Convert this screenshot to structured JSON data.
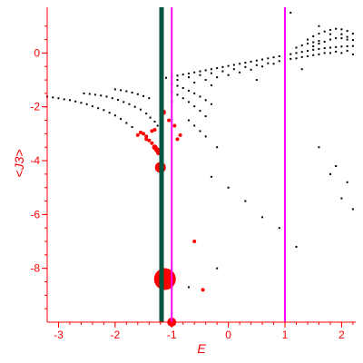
{
  "chart_data": {
    "type": "scatter",
    "title": "",
    "xlabel": "E",
    "ylabel": "<J3>",
    "xlim": [
      -3.2,
      2.25
    ],
    "ylim": [
      -10.0,
      1.7
    ],
    "grid": false,
    "legend": "none",
    "x_ticks": [
      {
        "value": -3,
        "label": "-3"
      },
      {
        "value": -2,
        "label": "-2"
      },
      {
        "value": -1,
        "label": "-1"
      },
      {
        "value": 0,
        "label": "0"
      },
      {
        "value": 1,
        "label": "1"
      },
      {
        "value": 2,
        "label": "2"
      }
    ],
    "y_ticks": [
      {
        "value": 0,
        "label": "0"
      },
      {
        "value": -2,
        "label": "-2"
      },
      {
        "value": -4,
        "label": "-4"
      },
      {
        "value": -6,
        "label": "-6"
      },
      {
        "value": -8,
        "label": "-8"
      }
    ],
    "colors": {
      "axis": "#ff0000",
      "tick_label": "#ff0000",
      "black_points": "#000000",
      "red_points": "#ff0000",
      "green_line": "#00553f",
      "magenta_line": "#ff00ff"
    },
    "vertical_lines": [
      {
        "x": -1.18,
        "color": "#00553f",
        "width": "thick"
      },
      {
        "x": -1.0,
        "color": "#ff00ff",
        "width": "thin"
      },
      {
        "x": 1.0,
        "color": "#ff00ff",
        "width": "thin"
      }
    ],
    "series": [
      {
        "color": "#000000",
        "marker": "small-square",
        "points": [
          [
            -3.2,
            -1.62
          ],
          [
            -3.1,
            -1.65
          ],
          [
            -3.0,
            -1.68
          ],
          [
            -2.9,
            -1.72
          ],
          [
            -2.8,
            -1.75
          ],
          [
            -2.7,
            -1.8
          ],
          [
            -2.6,
            -1.85
          ],
          [
            -2.5,
            -1.9
          ],
          [
            -2.4,
            -1.98
          ],
          [
            -2.3,
            -2.05
          ],
          [
            -2.2,
            -2.12
          ],
          [
            -2.1,
            -2.22
          ],
          [
            -2.0,
            -2.32
          ],
          [
            -1.9,
            -2.45
          ],
          [
            -1.8,
            -2.6
          ],
          [
            -1.7,
            -2.75
          ],
          [
            -2.55,
            -1.5
          ],
          [
            -2.45,
            -1.52
          ],
          [
            -2.35,
            -1.55
          ],
          [
            -2.25,
            -1.58
          ],
          [
            -2.15,
            -1.62
          ],
          [
            -2.05,
            -1.68
          ],
          [
            -1.95,
            -1.74
          ],
          [
            -1.85,
            -1.82
          ],
          [
            -1.75,
            -1.9
          ],
          [
            -1.65,
            -2.0
          ],
          [
            -1.55,
            -2.1
          ],
          [
            -1.45,
            -2.25
          ],
          [
            -1.38,
            -2.4
          ],
          [
            -1.3,
            -2.55
          ],
          [
            -1.25,
            -2.7
          ],
          [
            -2.0,
            -1.35
          ],
          [
            -1.9,
            -1.38
          ],
          [
            -1.8,
            -1.42
          ],
          [
            -1.7,
            -1.47
          ],
          [
            -1.6,
            -1.53
          ],
          [
            -1.5,
            -1.6
          ],
          [
            -1.4,
            -1.68
          ],
          [
            -1.0,
            -1.15
          ],
          [
            -0.9,
            -1.22
          ],
          [
            -0.8,
            -1.3
          ],
          [
            -0.7,
            -1.4
          ],
          [
            -0.6,
            -1.5
          ],
          [
            -0.5,
            -1.62
          ],
          [
            -0.4,
            -1.75
          ],
          [
            -0.3,
            -1.9
          ],
          [
            -1.0,
            -1.45
          ],
          [
            -0.9,
            -1.55
          ],
          [
            -0.8,
            -1.68
          ],
          [
            -0.7,
            -1.82
          ],
          [
            -0.6,
            -1.98
          ],
          [
            -0.5,
            -2.15
          ],
          [
            -0.4,
            -2.35
          ],
          [
            -1.1,
            -0.92
          ],
          [
            -1.0,
            -0.88
          ],
          [
            -0.9,
            -0.84
          ],
          [
            -0.8,
            -0.8
          ],
          [
            -0.7,
            -0.76
          ],
          [
            -0.6,
            -0.72
          ],
          [
            -0.5,
            -0.68
          ],
          [
            -0.4,
            -0.64
          ],
          [
            -0.3,
            -0.6
          ],
          [
            -0.2,
            -0.56
          ],
          [
            -0.1,
            -0.52
          ],
          [
            0.0,
            -0.48
          ],
          [
            0.1,
            -0.44
          ],
          [
            0.2,
            -0.4
          ],
          [
            0.3,
            -0.36
          ],
          [
            0.4,
            -0.32
          ],
          [
            0.5,
            -0.28
          ],
          [
            0.6,
            -0.24
          ],
          [
            0.7,
            -0.2
          ],
          [
            0.8,
            -0.16
          ],
          [
            0.9,
            -0.12
          ],
          [
            1.0,
            -0.08
          ],
          [
            1.1,
            -0.04
          ],
          [
            1.2,
            0.0
          ],
          [
            1.3,
            0.04
          ],
          [
            1.4,
            0.08
          ],
          [
            1.5,
            0.12
          ],
          [
            1.6,
            0.15
          ],
          [
            1.7,
            0.18
          ],
          [
            1.8,
            0.2
          ],
          [
            1.9,
            0.22
          ],
          [
            2.0,
            0.24
          ],
          [
            2.1,
            0.25
          ],
          [
            2.2,
            0.26
          ],
          [
            -0.9,
            -1.0
          ],
          [
            -0.7,
            -0.9
          ],
          [
            -0.5,
            -0.82
          ],
          [
            -0.3,
            -0.75
          ],
          [
            -0.1,
            -0.68
          ],
          [
            0.1,
            -0.6
          ],
          [
            0.3,
            -0.52
          ],
          [
            0.5,
            -0.45
          ],
          [
            0.7,
            -0.38
          ],
          [
            0.9,
            -0.3
          ],
          [
            1.1,
            -0.22
          ],
          [
            1.3,
            -0.15
          ],
          [
            1.5,
            -0.08
          ],
          [
            1.7,
            0.0
          ],
          [
            1.9,
            0.05
          ],
          [
            2.1,
            0.08
          ],
          [
            -0.6,
            -1.1
          ],
          [
            -0.4,
            -1.0
          ],
          [
            -0.2,
            -0.9
          ],
          [
            0.0,
            -0.82
          ],
          [
            0.2,
            -0.72
          ],
          [
            0.4,
            -0.62
          ],
          [
            0.6,
            -0.5
          ],
          [
            0.8,
            -0.4
          ],
          [
            1.0,
            -0.3
          ],
          [
            1.2,
            -0.2
          ],
          [
            1.4,
            -0.12
          ],
          [
            1.6,
            -0.05
          ],
          [
            1.8,
            0.0
          ],
          [
            2.0,
            0.0
          ],
          [
            2.2,
            -0.05
          ],
          [
            1.4,
            0.5
          ],
          [
            1.5,
            0.62
          ],
          [
            1.6,
            0.72
          ],
          [
            1.7,
            0.8
          ],
          [
            1.8,
            0.86
          ],
          [
            1.9,
            0.9
          ],
          [
            2.0,
            0.88
          ],
          [
            2.1,
            0.82
          ],
          [
            2.2,
            0.72
          ],
          [
            1.5,
            0.25
          ],
          [
            1.6,
            0.35
          ],
          [
            1.7,
            0.42
          ],
          [
            1.8,
            0.5
          ],
          [
            1.9,
            0.55
          ],
          [
            2.0,
            0.55
          ],
          [
            2.1,
            0.5
          ],
          [
            1.2,
            0.2
          ],
          [
            1.3,
            0.28
          ],
          [
            1.4,
            0.35
          ],
          [
            1.5,
            0.4
          ],
          [
            1.6,
            0.45
          ],
          [
            1.8,
            0.7
          ],
          [
            2.0,
            0.7
          ],
          [
            2.2,
            0.48
          ],
          [
            1.0,
            1.3
          ],
          [
            1.1,
            1.5
          ],
          [
            1.6,
            1.0
          ],
          [
            2.1,
            0.6
          ],
          [
            -0.7,
            -2.5
          ],
          [
            -0.6,
            -2.7
          ],
          [
            -0.5,
            -2.9
          ],
          [
            -0.4,
            -3.1
          ],
          [
            -0.2,
            -3.5
          ],
          [
            -0.3,
            -4.6
          ],
          [
            0.0,
            -5.0
          ],
          [
            0.3,
            -5.5
          ],
          [
            0.6,
            -6.1
          ],
          [
            0.9,
            -6.5
          ],
          [
            1.2,
            -7.2
          ],
          [
            1.6,
            -3.5
          ],
          [
            1.8,
            -4.5
          ],
          [
            1.9,
            -4.2
          ],
          [
            2.0,
            -5.4
          ],
          [
            2.1,
            -4.8
          ],
          [
            2.2,
            -5.8
          ],
          [
            -0.2,
            -8.0
          ],
          [
            -0.7,
            -8.7
          ],
          [
            -1.0,
            -1.8
          ],
          [
            -0.3,
            -1.2
          ],
          [
            0.5,
            -1.0
          ],
          [
            1.3,
            -0.6
          ]
        ]
      },
      {
        "color": "#ff0000",
        "marker": "circle",
        "points": [
          [
            -1.55,
            -2.95,
            2
          ],
          [
            -1.5,
            -3.0,
            2
          ],
          [
            -1.45,
            -3.1,
            2
          ],
          [
            -1.4,
            -3.25,
            2
          ],
          [
            -1.35,
            -3.35,
            2
          ],
          [
            -1.3,
            -3.5,
            3
          ],
          [
            -1.26,
            -3.6,
            3
          ],
          [
            -1.23,
            -3.7,
            3
          ],
          [
            -1.35,
            -2.9,
            2
          ],
          [
            -1.3,
            -2.85,
            2
          ],
          [
            -1.45,
            -3.2,
            2
          ],
          [
            -1.15,
            -2.2,
            3
          ],
          [
            -1.05,
            -2.5,
            2
          ],
          [
            -0.95,
            -2.7,
            2
          ],
          [
            -0.9,
            -3.2,
            2
          ],
          [
            -0.85,
            -3.05,
            2
          ],
          [
            -1.2,
            -4.25,
            6
          ],
          [
            -1.12,
            -8.4,
            12
          ],
          [
            -1.0,
            -10.0,
            5
          ],
          [
            -0.6,
            -7.0,
            2
          ],
          [
            -0.45,
            -8.8,
            2
          ],
          [
            -1.6,
            -3.05,
            2
          ]
        ]
      }
    ]
  }
}
